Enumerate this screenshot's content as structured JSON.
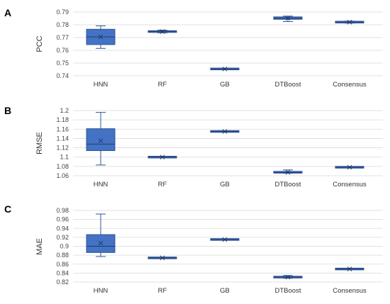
{
  "chart_data": [
    {
      "type": "box",
      "panel": "A",
      "ylabel": "PCC",
      "ylim": [
        0.74,
        0.79
      ],
      "yticks": [
        0.74,
        0.75,
        0.76,
        0.77,
        0.78,
        0.79
      ],
      "ytick_labels": [
        "0.74",
        "0.75",
        "0.76",
        "0.77",
        "0.78",
        "0.79"
      ],
      "grid": true,
      "categories": [
        "HNN",
        "RF",
        "GB",
        "DTBoost",
        "Consensus"
      ],
      "boxes": [
        {
          "min": 0.7615,
          "q1": 0.7645,
          "median": 0.7705,
          "q3": 0.7765,
          "max": 0.7792,
          "mean": 0.7705
        },
        {
          "min": 0.7737,
          "q1": 0.7742,
          "median": 0.7748,
          "q3": 0.7752,
          "max": 0.7758,
          "mean": 0.7747
        },
        {
          "min": 0.7448,
          "q1": 0.7451,
          "median": 0.7454,
          "q3": 0.7457,
          "max": 0.7461,
          "mean": 0.7454
        },
        {
          "min": 0.7825,
          "q1": 0.7843,
          "median": 0.7852,
          "q3": 0.7862,
          "max": 0.7868,
          "mean": 0.7852
        },
        {
          "min": 0.7813,
          "q1": 0.7817,
          "median": 0.7821,
          "q3": 0.7825,
          "max": 0.7829,
          "mean": 0.7821
        }
      ]
    },
    {
      "type": "box",
      "panel": "B",
      "ylabel": "RMSE",
      "ylim": [
        1.06,
        1.2
      ],
      "yticks": [
        1.06,
        1.08,
        1.1,
        1.12,
        1.14,
        1.16,
        1.18,
        1.2
      ],
      "ytick_labels": [
        "1.06",
        "1.08",
        "1.1",
        "1.12",
        "1.14",
        "1.16",
        "1.18",
        "1.2"
      ],
      "grid": true,
      "categories": [
        "HNN",
        "RF",
        "GB",
        "DTBoost",
        "Consensus"
      ],
      "boxes": [
        {
          "min": 1.083,
          "q1": 1.114,
          "median": 1.128,
          "q3": 1.161,
          "max": 1.196,
          "mean": 1.135
        },
        {
          "min": 1.0985,
          "q1": 1.099,
          "median": 1.1,
          "q3": 1.101,
          "max": 1.1015,
          "mean": 1.1
        },
        {
          "min": 1.1535,
          "q1": 1.1542,
          "median": 1.155,
          "q3": 1.156,
          "max": 1.1567,
          "mean": 1.155
        },
        {
          "min": 1.0655,
          "q1": 1.066,
          "median": 1.067,
          "q3": 1.069,
          "max": 1.0725,
          "mean": 1.0672
        },
        {
          "min": 1.0775,
          "q1": 1.0778,
          "median": 1.0782,
          "q3": 1.0787,
          "max": 1.079,
          "mean": 1.0782
        }
      ]
    },
    {
      "type": "box",
      "panel": "C",
      "ylabel": "MAE",
      "ylim": [
        0.82,
        0.98
      ],
      "yticks": [
        0.82,
        0.84,
        0.86,
        0.88,
        0.9,
        0.92,
        0.94,
        0.96,
        0.98
      ],
      "ytick_labels": [
        "0.82",
        "0.84",
        "0.86",
        "0.88",
        "0.9",
        "0.92",
        "0.94",
        "0.96",
        "0.98"
      ],
      "grid": true,
      "categories": [
        "HNN",
        "RF",
        "GB",
        "DTBoost",
        "Consensus"
      ],
      "boxes": [
        {
          "min": 0.877,
          "q1": 0.886,
          "median": 0.9,
          "q3": 0.926,
          "max": 0.972,
          "mean": 0.907
        },
        {
          "min": 0.8725,
          "q1": 0.873,
          "median": 0.874,
          "q3": 0.875,
          "max": 0.8755,
          "mean": 0.874
        },
        {
          "min": 0.914,
          "q1": 0.9145,
          "median": 0.915,
          "q3": 0.9158,
          "max": 0.9162,
          "mean": 0.915
        },
        {
          "min": 0.8285,
          "q1": 0.8295,
          "median": 0.831,
          "q3": 0.8325,
          "max": 0.8345,
          "mean": 0.831
        },
        {
          "min": 0.8475,
          "q1": 0.848,
          "median": 0.8492,
          "q3": 0.8502,
          "max": 0.8508,
          "mean": 0.8492
        }
      ]
    }
  ]
}
